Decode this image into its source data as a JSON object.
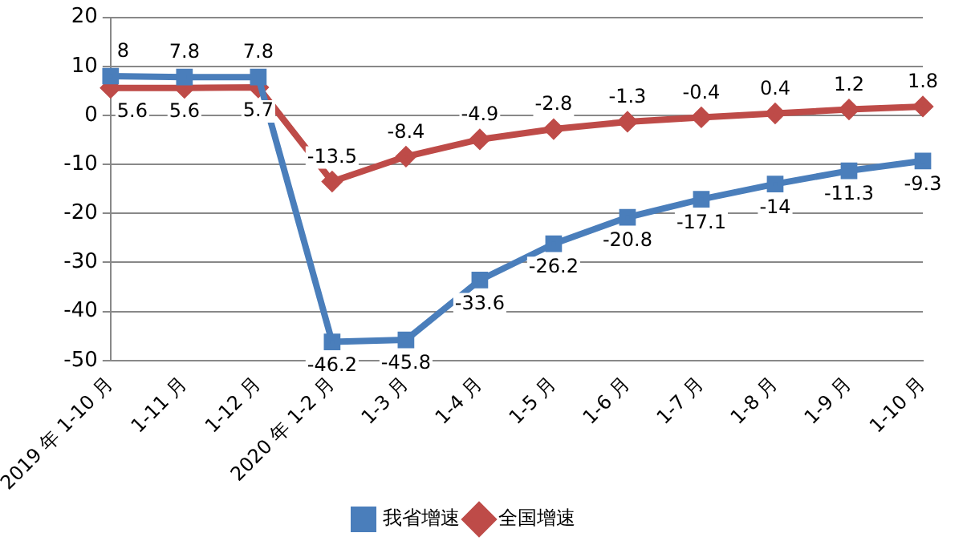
{
  "chart_data": {
    "type": "line",
    "categories": [
      "2019 年 1-10 月",
      "1-11 月",
      "1-12 月",
      "2020 年 1-2 月",
      "1-3 月",
      "1-4 月",
      "1-5 月",
      "1-6 月",
      "1-7 月",
      "1-8 月",
      "1-9 月",
      "1-10 月"
    ],
    "series": [
      {
        "name": "我省增速",
        "color": "#4a7ebb",
        "marker": "square",
        "values": [
          8,
          7.8,
          7.8,
          -46.2,
          -45.8,
          -33.6,
          -26.2,
          -20.8,
          -17.1,
          -14,
          -11.3,
          -9.3
        ]
      },
      {
        "name": "全国增速",
        "color": "#be4b48",
        "marker": "diamond",
        "values": [
          5.6,
          5.6,
          5.7,
          -13.5,
          -8.4,
          -4.9,
          -2.8,
          -1.3,
          -0.4,
          0.4,
          1.2,
          1.8
        ]
      }
    ],
    "ylim": [
      -50,
      20
    ],
    "yticks": [
      -50,
      -40,
      -30,
      -20,
      -10,
      0,
      10,
      20
    ],
    "grid": "y",
    "legend": "bottom",
    "data_labels": true
  }
}
